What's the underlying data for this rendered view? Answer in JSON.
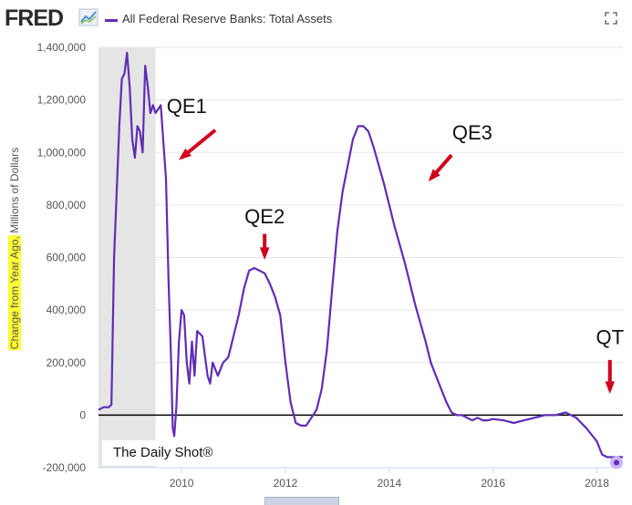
{
  "header": {
    "logo_text": "FRED",
    "legend_label": "All Federal Reserve Banks: Total Assets"
  },
  "icons": {
    "logo_graph": "trend-graph-icon",
    "fullscreen": "fullscreen-icon"
  },
  "colors": {
    "series": "#5f2db5",
    "recession": "#e5e5e5",
    "arrow": "#d0021b",
    "ylabel_highlight": "#ffff33",
    "last_point": "#c9b3ff"
  },
  "watermark": {
    "text": "The Daily Shot®"
  },
  "chart_data": {
    "type": "line",
    "title": "",
    "xlabel": "",
    "ylabel_highlight": "Change from Year Ago,",
    "ylabel_rest": " Millions of Dollars",
    "xlim": [
      2008.4,
      2018.5
    ],
    "ylim": [
      -200000,
      1400000
    ],
    "yticks": [
      -200000,
      0,
      200000,
      400000,
      600000,
      800000,
      1000000,
      1200000,
      1400000
    ],
    "ytick_labels": [
      "-200,000",
      "0",
      "200,000",
      "400,000",
      "600,000",
      "800,000",
      "1,000,000",
      "1,200,000",
      "1,400,000"
    ],
    "xticks": [
      2010,
      2012,
      2014,
      2016,
      2018
    ],
    "xtick_labels": [
      "2010",
      "2012",
      "2014",
      "2016",
      "2018"
    ],
    "grid": "horizontal",
    "zero_line": true,
    "recession_band": [
      2008.4,
      2009.5
    ],
    "series": [
      {
        "values_x": [
          2008.4,
          2008.5,
          2008.6,
          2008.65,
          2008.7,
          2008.8,
          2008.85,
          2008.9,
          2008.95,
          2009.0,
          2009.05,
          2009.1,
          2009.15,
          2009.2,
          2009.25,
          2009.3,
          2009.35,
          2009.4,
          2009.45,
          2009.5,
          2009.6,
          2009.7,
          2009.75,
          2009.8,
          2009.83,
          2009.86,
          2009.9,
          2009.95,
          2010.0,
          2010.05,
          2010.1,
          2010.15,
          2010.2,
          2010.25,
          2010.3,
          2010.4,
          2010.5,
          2010.55,
          2010.6,
          2010.7,
          2010.8,
          2010.9,
          2011.0,
          2011.1,
          2011.2,
          2011.3,
          2011.4,
          2011.5,
          2011.6,
          2011.7,
          2011.8,
          2011.9,
          2012.0,
          2012.1,
          2012.2,
          2012.3,
          2012.4,
          2012.5,
          2012.6,
          2012.7,
          2012.8,
          2012.9,
          2013.0,
          2013.1,
          2013.2,
          2013.3,
          2013.4,
          2013.5,
          2013.6,
          2013.7,
          2013.8,
          2013.9,
          2014.0,
          2014.1,
          2014.2,
          2014.3,
          2014.4,
          2014.5,
          2014.6,
          2014.7,
          2014.8,
          2014.9,
          2015.0,
          2015.1,
          2015.2,
          2015.3,
          2015.4,
          2015.5,
          2015.6,
          2015.7,
          2015.8,
          2015.9,
          2016.0,
          2016.2,
          2016.4,
          2016.6,
          2016.8,
          2017.0,
          2017.2,
          2017.4,
          2017.6,
          2017.8,
          2018.0,
          2018.1,
          2018.2,
          2018.3,
          2018.4,
          2018.5
        ],
        "values": [
          20000,
          30000,
          30000,
          40000,
          600000,
          1100000,
          1280000,
          1300000,
          1380000,
          1250000,
          1050000,
          980000,
          1100000,
          1080000,
          1000000,
          1330000,
          1250000,
          1150000,
          1180000,
          1150000,
          1180000,
          900000,
          500000,
          200000,
          -50000,
          -80000,
          30000,
          280000,
          400000,
          380000,
          200000,
          120000,
          280000,
          150000,
          320000,
          300000,
          150000,
          120000,
          200000,
          150000,
          200000,
          220000,
          300000,
          380000,
          480000,
          550000,
          560000,
          550000,
          540000,
          500000,
          450000,
          380000,
          200000,
          50000,
          -30000,
          -40000,
          -40000,
          -10000,
          20000,
          100000,
          250000,
          480000,
          700000,
          850000,
          950000,
          1050000,
          1100000,
          1100000,
          1080000,
          1020000,
          950000,
          880000,
          800000,
          720000,
          650000,
          580000,
          500000,
          420000,
          350000,
          280000,
          200000,
          150000,
          100000,
          50000,
          10000,
          0,
          0,
          -10000,
          -20000,
          -10000,
          -20000,
          -20000,
          -15000,
          -20000,
          -30000,
          -20000,
          -10000,
          0,
          0,
          10000,
          -10000,
          -50000,
          -100000,
          -150000,
          -160000,
          -160000,
          -160000,
          -160000
        ]
      }
    ],
    "annotations": [
      {
        "text": "QE1",
        "x": 2010.1,
        "y": 1150000
      },
      {
        "text": "QE2",
        "x": 2011.6,
        "y": 730000
      },
      {
        "text": "QE3",
        "x": 2015.6,
        "y": 1050000
      },
      {
        "text": "QT",
        "x": 2018.25,
        "y": 270000
      }
    ]
  }
}
